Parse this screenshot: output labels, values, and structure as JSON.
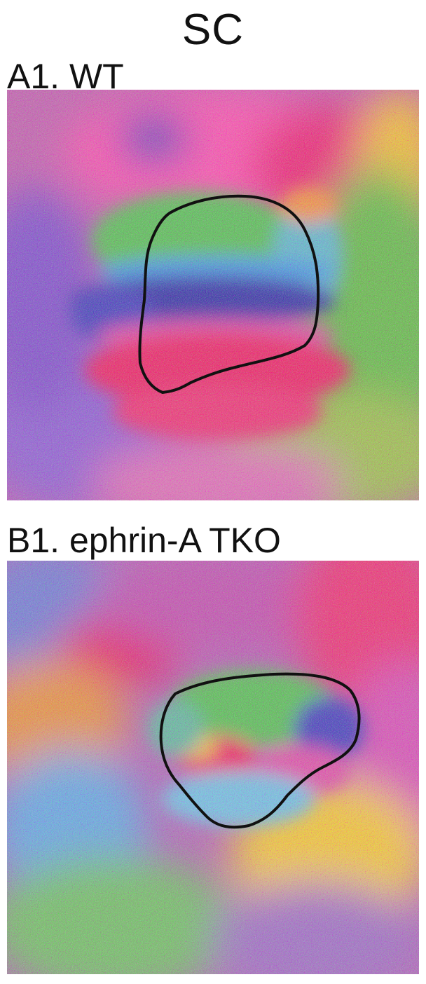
{
  "figure": {
    "heading": "SC",
    "panels": [
      {
        "label": "A1. WT",
        "description_colors": [
          "#e8245a",
          "#ff5aa8",
          "#4fd04a",
          "#3aa8e0",
          "#2a3aa0",
          "#f5e020"
        ]
      },
      {
        "label": "B1. ephrin-A TKO",
        "description_colors": [
          "#e8245a",
          "#ff5aa8",
          "#4fd04a",
          "#5cc8e8",
          "#2a3aa0",
          "#f5e020"
        ]
      }
    ],
    "outline_color": "#111111"
  }
}
